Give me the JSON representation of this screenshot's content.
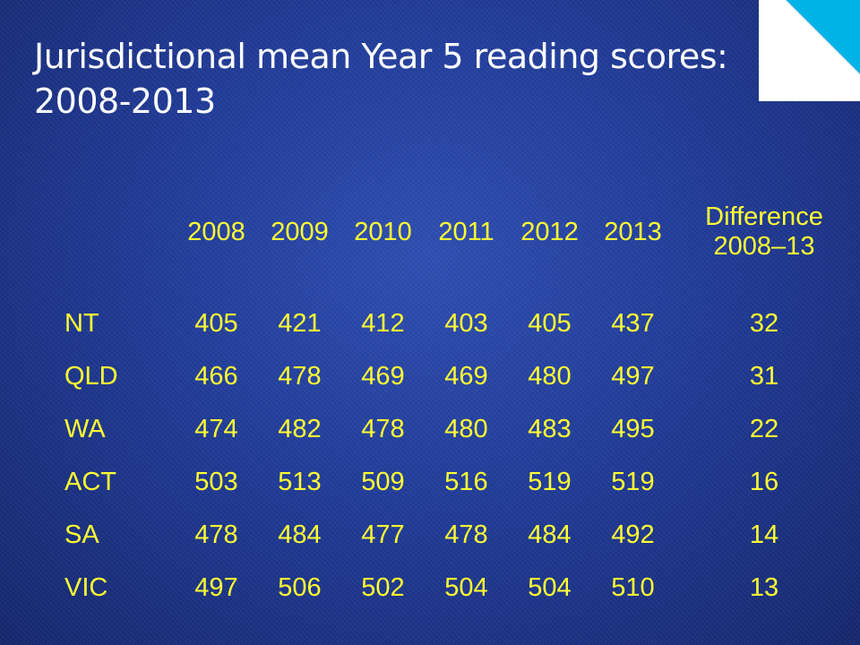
{
  "title": {
    "line1": "Jurisdictional mean Year 5 reading scores:",
    "line2": "2008-2013"
  },
  "table": {
    "columns": [
      "2008",
      "2009",
      "2010",
      "2011",
      "2012",
      "2013"
    ],
    "difference_header": {
      "line1": "Difference",
      "line2": "2008–13"
    },
    "rows": [
      {
        "region": "NT",
        "values": [
          "405",
          "421",
          "412",
          "403",
          "405",
          "437"
        ],
        "difference": "32"
      },
      {
        "region": "QLD",
        "values": [
          "466",
          "478",
          "469",
          "469",
          "480",
          "497"
        ],
        "difference": "31"
      },
      {
        "region": "WA",
        "values": [
          "474",
          "482",
          "478",
          "480",
          "483",
          "495"
        ],
        "difference": "22"
      },
      {
        "region": "ACT",
        "values": [
          "503",
          "513",
          "509",
          "516",
          "519",
          "519"
        ],
        "difference": "16"
      },
      {
        "region": "SA",
        "values": [
          "478",
          "484",
          "477",
          "478",
          "484",
          "492"
        ],
        "difference": "14"
      },
      {
        "region": "VIC",
        "values": [
          "497",
          "506",
          "502",
          "504",
          "504",
          "510"
        ],
        "difference": "13"
      }
    ]
  },
  "colors": {
    "text_yellow": "#ffff33",
    "title_white": "#ffffff",
    "corner_cyan": "#00b3e6"
  }
}
